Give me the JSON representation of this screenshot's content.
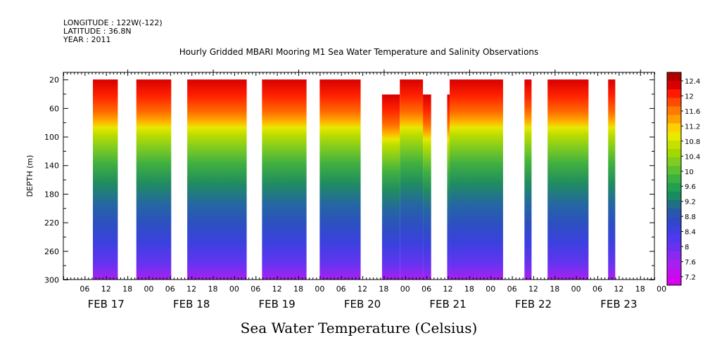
{
  "header": {
    "longitude": "LONGITUDE : 122W(-122)",
    "latitude": "LATITUDE : 36.8N",
    "year": "YEAR : 2011"
  },
  "chart_data": {
    "type": "heatmap",
    "title": "Hourly Gridded MBARI Mooring M1 Sea Water Temperature and Salinity Observations",
    "footer": "Sea Water Temperature (Celsius)",
    "ylabel": "DEPTH (m)",
    "ylim": [
      300,
      10
    ],
    "y_ticks": [
      "20",
      "60",
      "100",
      "140",
      "180",
      "220",
      "260",
      "300"
    ],
    "x_range_hours": [
      0,
      166
    ],
    "x_ticks": [
      "06",
      "12",
      "18",
      "00",
      "06",
      "12",
      "18",
      "00",
      "06",
      "12",
      "18",
      "00",
      "06",
      "12",
      "18",
      "00",
      "06",
      "12",
      "18",
      "00",
      "06",
      "12",
      "18",
      "00",
      "06",
      "12",
      "18",
      "00"
    ],
    "day_labels": [
      "FEB 17",
      "FEB 18",
      "FEB 19",
      "FEB 20",
      "FEB 21",
      "FEB 22",
      "FEB 23"
    ],
    "data_segments": [
      {
        "start": 8.3,
        "end": 15.3,
        "top": 20
      },
      {
        "start": 20.5,
        "end": 30.3,
        "top": 20
      },
      {
        "start": 34.8,
        "end": 51.5,
        "top": 20
      },
      {
        "start": 55.8,
        "end": 68.3,
        "top": 20
      },
      {
        "start": 72.0,
        "end": 83.5,
        "top": 20
      },
      {
        "start": 89.5,
        "end": 94.5,
        "top": 41
      },
      {
        "start": 94.5,
        "end": 101.0,
        "top": 20
      },
      {
        "start": 101.0,
        "end": 103.3,
        "top": 41
      },
      {
        "start": 107.8,
        "end": 108.5,
        "top": 41
      },
      {
        "start": 108.5,
        "end": 123.5,
        "top": 20
      },
      {
        "start": 129.5,
        "end": 131.5,
        "top": 20
      },
      {
        "start": 136.0,
        "end": 147.5,
        "top": 20
      },
      {
        "start": 153.0,
        "end": 155.0,
        "top": 20
      }
    ],
    "colorbar": {
      "labels": [
        "12.4",
        "12",
        "11.6",
        "11.2",
        "10.8",
        "10.4",
        "10",
        "9.6",
        "9.2",
        "8.8",
        "8.4",
        "8",
        "7.6",
        "7.2"
      ],
      "colors": [
        "#b00000",
        "#d80000",
        "#ff1a00",
        "#ff4a00",
        "#ff7a00",
        "#ffa000",
        "#ffd000",
        "#e8e800",
        "#c8e000",
        "#a0d800",
        "#80cc20",
        "#5cc030",
        "#3cb040",
        "#20a050",
        "#188c60",
        "#206e88",
        "#2858a8",
        "#3048c8",
        "#3c40e0",
        "#5038f0",
        "#6830f0",
        "#8828f0",
        "#a820f0",
        "#c010f0",
        "#d800f0"
      ]
    }
  }
}
